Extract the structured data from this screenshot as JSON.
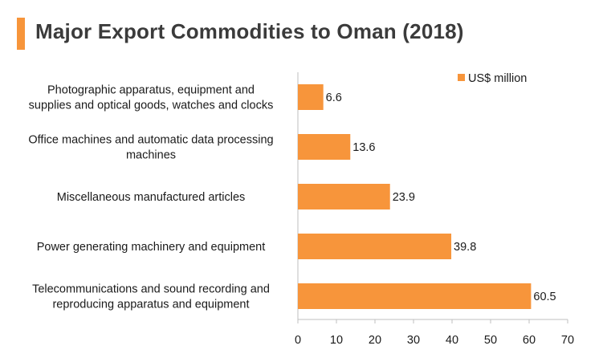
{
  "header": {
    "title": "Major Export Commodities to Oman (2018)",
    "accent_color": "#f7953b"
  },
  "chart_data": {
    "type": "bar",
    "orientation": "horizontal",
    "title": "Major Export Commodities to Oman (2018)",
    "categories": [
      [
        "Photographic apparatus, equipment and",
        "supplies and optical goods, watches and clocks"
      ],
      [
        "Office machines and automatic data processing",
        "machines"
      ],
      [
        "Miscellaneous manufactured articles"
      ],
      [
        "Power generating machinery and equipment"
      ],
      [
        "Telecommunications and sound recording and",
        "reproducing apparatus and equipment"
      ]
    ],
    "series": [
      {
        "name": "US$ million",
        "values": [
          6.6,
          13.6,
          23.9,
          39.8,
          60.5
        ],
        "color": "#f7953b"
      }
    ],
    "data_labels": [
      "6.6",
      "13.6",
      "23.9",
      "39.8",
      "60.5"
    ],
    "xlim": [
      0,
      70
    ],
    "xticks": [
      0,
      10,
      20,
      30,
      40,
      50,
      60,
      70
    ],
    "grid": false,
    "legend_position": "top-right"
  }
}
